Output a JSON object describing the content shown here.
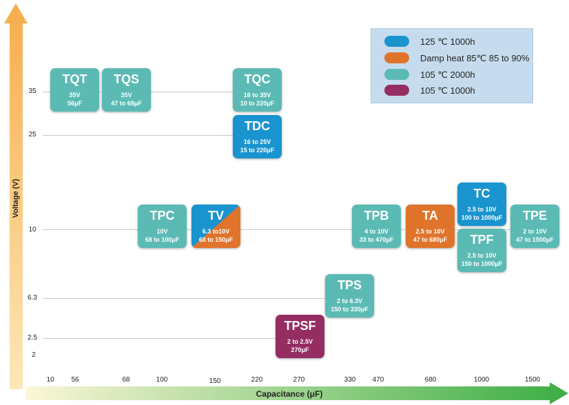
{
  "chart_data": {
    "type": "table",
    "xlabel": "Capacitance (μF)",
    "ylabel": "Voltage (V)",
    "x_ticks": [
      "10",
      "56",
      "68",
      "100",
      "150",
      "220",
      "270",
      "330",
      "470",
      "680",
      "1000",
      "1500"
    ],
    "y_ticks": [
      "35",
      "25",
      "10",
      "6.3",
      "2.5",
      "2"
    ],
    "legend": [
      {
        "label": "125 ℃ 1000h",
        "color": "#1a94cf"
      },
      {
        "label": "Damp heat 85℃ 85 to 90%",
        "color": "#e0742a"
      },
      {
        "label": "105 ℃ 2000h",
        "color": "#5bbab4"
      },
      {
        "label": "105 ℃ 1000h",
        "color": "#952d63"
      }
    ],
    "legend_position": "top-right",
    "series": [
      {
        "name": "TQT",
        "voltage": "35V",
        "capacitance": "56μF",
        "category": "105 ℃ 2000h"
      },
      {
        "name": "TQS",
        "voltage": "35V",
        "capacitance": "47 to 68μF",
        "category": "105 ℃ 2000h"
      },
      {
        "name": "TQC",
        "voltage": "16 to 35V",
        "capacitance": "10 to 220μF",
        "category": "105 ℃ 2000h"
      },
      {
        "name": "TDC",
        "voltage": "16 to 25V",
        "capacitance": "15 to 220μF",
        "category": "125 ℃ 1000h"
      },
      {
        "name": "TPC",
        "voltage": "10V",
        "capacitance": "68 to 100μF",
        "category": "105 ℃ 2000h"
      },
      {
        "name": "TV",
        "voltage": "6.3 to10V",
        "capacitance": "68 to 150μF",
        "category": "125 ℃ 1000h / Damp heat 85℃ 85 to 90%"
      },
      {
        "name": "TPB",
        "voltage": "4 to 10V",
        "capacitance": "33 to 470μF",
        "category": "105 ℃ 2000h"
      },
      {
        "name": "TA",
        "voltage": "2.5 to 10V",
        "capacitance": "47 to 680μF",
        "category": "Damp heat 85℃ 85 to 90%"
      },
      {
        "name": "TC",
        "voltage": "2.5 to 10V",
        "capacitance": "100 to 1000μF",
        "category": "125 ℃ 1000h"
      },
      {
        "name": "TPF",
        "voltage": "2.5 to 10V",
        "capacitance": "150 to 1000μF",
        "category": "105 ℃ 2000h"
      },
      {
        "name": "TPE",
        "voltage": "2 to 10V",
        "capacitance": "47 to 1500μF",
        "category": "105 ℃ 2000h"
      },
      {
        "name": "TPS",
        "voltage": "2 to 6.3V",
        "capacitance": "150 to 330μF",
        "category": "105 ℃ 2000h"
      },
      {
        "name": "TPSF",
        "voltage": "2 to 2.5V",
        "capacitance": "270μF",
        "category": "105 ℃ 1000h"
      }
    ],
    "grid": false
  }
}
